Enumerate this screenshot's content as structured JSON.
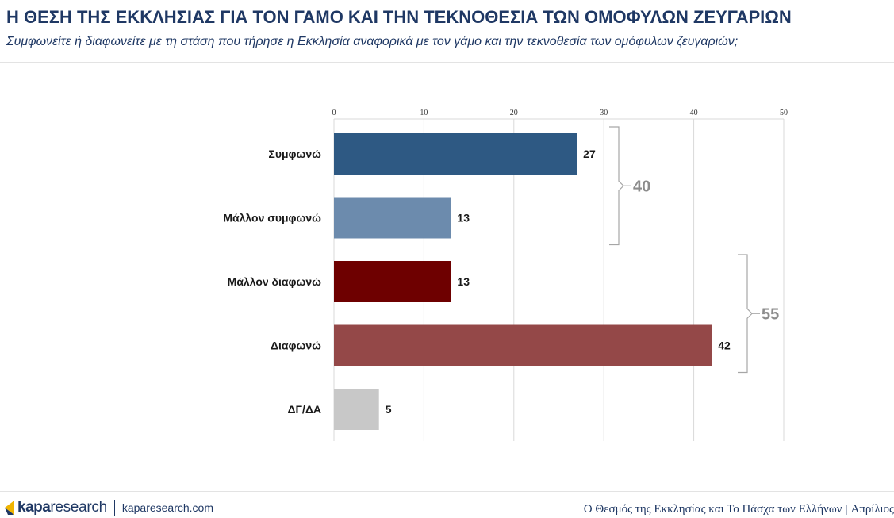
{
  "header": {
    "title": "Η ΘΕΣΗ ΤΗΣ ΕΚΚΛΗΣΙΑΣ ΓΙΑ ΤΟΝ ΓΑΜΟ ΚΑΙ ΤΗΝ ΤΕΚΝΟΘΕΣΙΑ ΤΩΝ ΟΜΟΦΥΛΩΝ ΖΕΥΓΑΡΙΩΝ",
    "subtitle": "Συμφωνείτε ή διαφωνείτε με τη στάση που τήρησε η Εκκλησία αναφορικά με τον γάμο και την τεκνοθεσία των ομόφυλων ζευγαριών;"
  },
  "chart_data": {
    "type": "bar",
    "orientation": "horizontal",
    "categories": [
      "Συμφωνώ",
      "Μάλλον συμφωνώ",
      "Μάλλον διαφωνώ",
      "Διαφωνώ",
      "ΔΓ/ΔΑ"
    ],
    "values": [
      27,
      13,
      13,
      42,
      5
    ],
    "colors": [
      "#2e5983",
      "#6c8bad",
      "#6e0000",
      "#944848",
      "#c8c8c8"
    ],
    "xlim": [
      0,
      50
    ],
    "xticks": [
      0,
      10,
      20,
      30,
      40,
      50
    ],
    "axis_position": "top",
    "grid": true,
    "groups": [
      {
        "label": "40",
        "from": 0,
        "to": 1
      },
      {
        "label": "55",
        "from": 2,
        "to": 3
      }
    ]
  },
  "footer": {
    "brand": "kapa",
    "brand_suffix": "research",
    "url": "kaparesearch.com",
    "report": "Ο Θεσμός της Εκκλησίας και Το Πάσχα των Ελλήνων",
    "separator": "|",
    "date": "Απρίλιος"
  }
}
